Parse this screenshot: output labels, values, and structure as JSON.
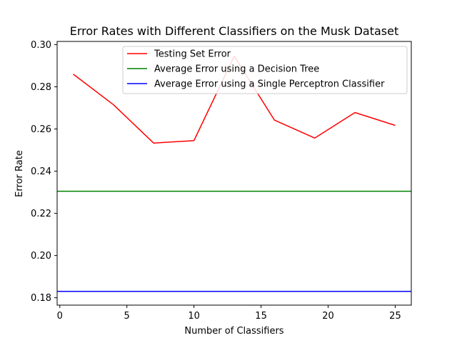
{
  "chart_data": {
    "type": "line",
    "title": "Error Rates with Different Classifiers on the Musk Dataset",
    "xlabel": "Number of Classifiers",
    "ylabel": "Error Rate",
    "xlim": [
      -0.2,
      26.2
    ],
    "ylim": [
      0.1765,
      0.3015
    ],
    "xticks": [
      0,
      5,
      10,
      15,
      20,
      25
    ],
    "xtick_labels": [
      "0",
      "5",
      "10",
      "15",
      "20",
      "25"
    ],
    "yticks": [
      0.18,
      0.2,
      0.22,
      0.24,
      0.26,
      0.28,
      0.3
    ],
    "ytick_labels": [
      "0.18",
      "0.20",
      "0.22",
      "0.24",
      "0.26",
      "0.28",
      "0.30"
    ],
    "grid": false,
    "legend_position": "top-right",
    "series": [
      {
        "name": "Testing Set Error",
        "color": "#ff0000",
        "x": [
          1,
          4,
          7,
          10,
          13,
          16,
          19,
          22,
          25
        ],
        "y": [
          0.286,
          0.2715,
          0.2533,
          0.2545,
          0.2945,
          0.2642,
          0.2557,
          0.2678,
          0.2617
        ]
      },
      {
        "name": "Average Error using a Decision Tree",
        "color": "#008000",
        "constant": 0.2305
      },
      {
        "name": "Average Error using a Single Perceptron Classifier",
        "color": "#0000ff",
        "constant": 0.183
      }
    ]
  }
}
